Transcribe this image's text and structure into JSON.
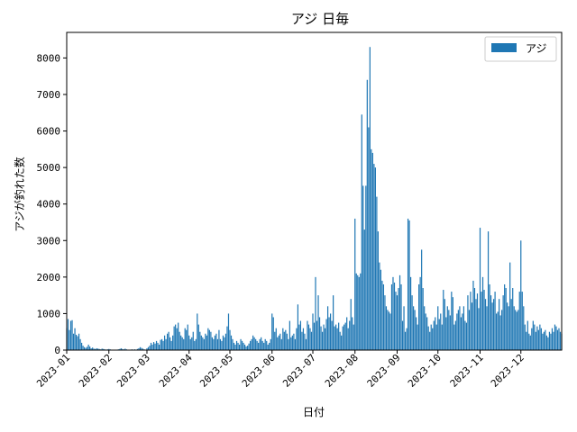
{
  "chart_data": {
    "type": "bar",
    "title": "アジ 日毎",
    "xlabel": "日付",
    "ylabel": "アジが釣れた数",
    "ylim": [
      0,
      8700
    ],
    "yticks": [
      0,
      1000,
      2000,
      3000,
      4000,
      5000,
      6000,
      7000,
      8000
    ],
    "xlim": [
      "2023-01-01",
      "2023-12-31"
    ],
    "xticks": [
      "2023-01",
      "2023-02",
      "2023-03",
      "2023-04",
      "2023-05",
      "2023-06",
      "2023-07",
      "2023-08",
      "2023-09",
      "2023-10",
      "2023-11",
      "2023-12"
    ],
    "legend": "top-right",
    "grid": false,
    "series": [
      {
        "name": "アジ",
        "color": "#1f77b4",
        "start_date": "2023-01-01",
        "values": [
          600,
          850,
          550,
          800,
          820,
          450,
          600,
          420,
          380,
          450,
          300,
          200,
          120,
          80,
          60,
          90,
          150,
          100,
          50,
          70,
          40,
          30,
          50,
          40,
          30,
          20,
          40,
          30,
          20,
          10,
          20,
          30,
          20,
          10,
          0,
          10,
          0,
          0,
          20,
          30,
          50,
          30,
          20,
          40,
          20,
          10,
          0,
          0,
          20,
          10,
          20,
          0,
          30,
          50,
          80,
          60,
          40,
          20,
          10,
          50,
          80,
          120,
          200,
          150,
          220,
          180,
          250,
          200,
          150,
          280,
          300,
          250,
          400,
          300,
          450,
          500,
          350,
          250,
          400,
          650,
          700,
          600,
          750,
          500,
          400,
          350,
          300,
          600,
          550,
          700,
          400,
          300,
          350,
          500,
          250,
          300,
          1000,
          700,
          500,
          400,
          350,
          300,
          450,
          400,
          600,
          550,
          500,
          350,
          300,
          400,
          450,
          300,
          550,
          300,
          250,
          400,
          350,
          450,
          650,
          1000,
          550,
          400,
          300,
          200,
          150,
          250,
          200,
          150,
          300,
          250,
          200,
          150,
          100,
          120,
          180,
          250,
          300,
          400,
          350,
          300,
          250,
          200,
          300,
          350,
          250,
          200,
          300,
          250,
          150,
          200,
          300,
          1000,
          900,
          500,
          600,
          350,
          400,
          450,
          300,
          600,
          500,
          550,
          450,
          300,
          800,
          350,
          400,
          450,
          300,
          600,
          1250,
          700,
          800,
          500,
          600,
          450,
          300,
          800,
          700,
          600,
          500,
          1000,
          750,
          2000,
          800,
          1500,
          900,
          650,
          500,
          700,
          600,
          850,
          1200,
          900,
          1000,
          800,
          1500,
          650,
          700,
          600,
          750,
          500,
          400,
          650,
          700,
          750,
          900,
          600,
          800,
          1400,
          900,
          700,
          3600,
          2100,
          2050,
          2000,
          2100,
          6450,
          4500,
          3300,
          4500,
          7400,
          6100,
          8300,
          5500,
          5400,
          5100,
          5000,
          4200,
          3250,
          2400,
          2200,
          1900,
          1800,
          1500,
          1200,
          1100,
          1050,
          1000,
          1800,
          2000,
          1850,
          1600,
          1500,
          1700,
          2050,
          1800,
          800,
          1200,
          500,
          600,
          3600,
          3550,
          2000,
          1500,
          1200,
          1100,
          900,
          700,
          1800,
          2000,
          2750,
          1700,
          1200,
          1000,
          900,
          650,
          500,
          700,
          600,
          800,
          900,
          700,
          1200,
          850,
          1000,
          700,
          1650,
          1400,
          900,
          1200,
          1100,
          950,
          1600,
          1450,
          700,
          800,
          1000,
          1100,
          1200,
          900,
          1000,
          1200,
          800,
          750,
          1500,
          1100,
          1600,
          1300,
          1900,
          1700,
          1400,
          1550,
          1150,
          3350,
          1600,
          2000,
          1650,
          1400,
          1200,
          3250,
          1800,
          1500,
          1300,
          1400,
          1600,
          1000,
          1050,
          1400,
          950,
          1100,
          1500,
          1800,
          1700,
          1300,
          1200,
          2400,
          1400,
          1700,
          1200,
          1100,
          1050,
          1100,
          1600,
          3000,
          1600,
          1200,
          700,
          500,
          800,
          450,
          400,
          600,
          800,
          700,
          500,
          650,
          550,
          700,
          600,
          450,
          500,
          550,
          400,
          350,
          500,
          450,
          600,
          500,
          700,
          650,
          550,
          600,
          500,
          450
        ]
      }
    ]
  }
}
